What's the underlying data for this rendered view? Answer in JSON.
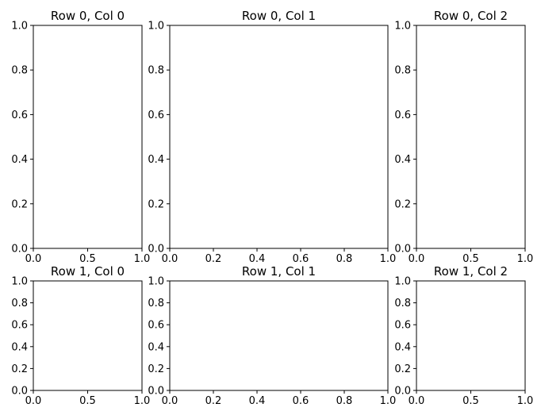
{
  "chart_data": [
    {
      "type": "scatter",
      "title": "Row 0, Col 0",
      "xlim": [
        0,
        1
      ],
      "ylim": [
        0,
        1
      ],
      "xticks": [
        0,
        0.5,
        1
      ],
      "xtick_labels": [
        "0.0",
        "0.5",
        "1.0"
      ],
      "yticks": [
        0,
        0.2,
        0.4,
        0.6,
        0.8,
        1
      ],
      "ytick_labels": [
        "0.0",
        "0.2",
        "0.4",
        "0.6",
        "0.8",
        "1.0"
      ],
      "series": [],
      "grid": false
    },
    {
      "type": "scatter",
      "title": "Row 0, Col 1",
      "xlim": [
        0,
        1
      ],
      "ylim": [
        0,
        1
      ],
      "xticks": [
        0,
        0.2,
        0.4,
        0.6,
        0.8,
        1
      ],
      "xtick_labels": [
        "0.0",
        "0.2",
        "0.4",
        "0.6",
        "0.8",
        "1.0"
      ],
      "yticks": [
        0,
        0.2,
        0.4,
        0.6,
        0.8,
        1
      ],
      "ytick_labels": [
        "0.0",
        "0.2",
        "0.4",
        "0.6",
        "0.8",
        "1.0"
      ],
      "series": [],
      "grid": false
    },
    {
      "type": "scatter",
      "title": "Row 0, Col 2",
      "xlim": [
        0,
        1
      ],
      "ylim": [
        0,
        1
      ],
      "xticks": [
        0,
        0.5,
        1
      ],
      "xtick_labels": [
        "0.0",
        "0.5",
        "1.0"
      ],
      "yticks": [
        0,
        0.2,
        0.4,
        0.6,
        0.8,
        1
      ],
      "ytick_labels": [
        "0.0",
        "0.2",
        "0.4",
        "0.6",
        "0.8",
        "1.0"
      ],
      "series": [],
      "grid": false
    },
    {
      "type": "scatter",
      "title": "Row 1, Col 0",
      "xlim": [
        0,
        1
      ],
      "ylim": [
        0,
        1
      ],
      "xticks": [
        0,
        0.5,
        1
      ],
      "xtick_labels": [
        "0.0",
        "0.5",
        "1.0"
      ],
      "yticks": [
        0,
        0.2,
        0.4,
        0.6,
        0.8,
        1
      ],
      "ytick_labels": [
        "0.0",
        "0.2",
        "0.4",
        "0.6",
        "0.8",
        "1.0"
      ],
      "series": [],
      "grid": false
    },
    {
      "type": "scatter",
      "title": "Row 1, Col 1",
      "xlim": [
        0,
        1
      ],
      "ylim": [
        0,
        1
      ],
      "xticks": [
        0,
        0.2,
        0.4,
        0.6,
        0.8,
        1
      ],
      "xtick_labels": [
        "0.0",
        "0.2",
        "0.4",
        "0.6",
        "0.8",
        "1.0"
      ],
      "yticks": [
        0,
        0.2,
        0.4,
        0.6,
        0.8,
        1
      ],
      "ytick_labels": [
        "0.0",
        "0.2",
        "0.4",
        "0.6",
        "0.8",
        "1.0"
      ],
      "series": [],
      "grid": false
    },
    {
      "type": "scatter",
      "title": "Row 1, Col 2",
      "xlim": [
        0,
        1
      ],
      "ylim": [
        0,
        1
      ],
      "xticks": [
        0,
        0.5,
        1
      ],
      "xtick_labels": [
        "0.0",
        "0.5",
        "1.0"
      ],
      "yticks": [
        0,
        0.2,
        0.4,
        0.6,
        0.8,
        1
      ],
      "ytick_labels": [
        "0.0",
        "0.2",
        "0.4",
        "0.6",
        "0.8",
        "1.0"
      ],
      "series": [],
      "grid": false
    }
  ]
}
